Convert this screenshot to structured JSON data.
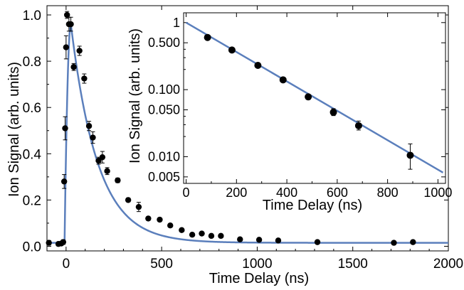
{
  "chart_data": [
    {
      "type": "scatter",
      "title": "",
      "xlabel": "Time Delay (ns)",
      "ylabel": "Ion Signal (arb. units)",
      "xlim": [
        -100,
        2000
      ],
      "ylim": [
        -0.02,
        1.04
      ],
      "xticks": [
        0,
        500,
        1000,
        1500,
        2000
      ],
      "yticks": [
        0.0,
        0.2,
        0.4,
        0.6,
        0.8,
        1.0
      ],
      "ytick_labels": [
        "0.0",
        "0.2",
        "0.4",
        "0.6",
        "0.8",
        "1.0"
      ],
      "grid": false,
      "legend": "none",
      "line_color": "#5b7fbc",
      "marker_color": "#000000",
      "series": [
        {
          "style": "markers-with-error-bars",
          "points": [
            {
              "x": -90,
              "y": 0.015,
              "err": 0.01
            },
            {
              "x": -40,
              "y": 0.01,
              "err": 0.008
            },
            {
              "x": -25,
              "y": 0.012,
              "err": 0.008
            },
            {
              "x": -15,
              "y": 0.018,
              "err": 0.01
            },
            {
              "x": -10,
              "y": 0.28,
              "err": 0.03
            },
            {
              "x": -5,
              "y": 0.51,
              "err": 0.05
            },
            {
              "x": 0,
              "y": 0.86,
              "err": 0.05
            },
            {
              "x": 5,
              "y": 1.0,
              "err": 0.015
            },
            {
              "x": 15,
              "y": 0.96,
              "err": 0.03
            },
            {
              "x": 25,
              "y": 0.96,
              "err": 0.03
            },
            {
              "x": 40,
              "y": 0.775,
              "err": 0.015
            },
            {
              "x": 70,
              "y": 0.845,
              "err": 0.02
            },
            {
              "x": 95,
              "y": 0.725,
              "err": 0.02
            },
            {
              "x": 120,
              "y": 0.52,
              "err": 0.02
            },
            {
              "x": 140,
              "y": 0.47,
              "err": 0.025
            },
            {
              "x": 170,
              "y": 0.37,
              "err": 0.015
            },
            {
              "x": 190,
              "y": 0.385,
              "err": 0.025
            },
            {
              "x": 215,
              "y": 0.325,
              "err": 0.015
            },
            {
              "x": 270,
              "y": 0.285,
              "err": 0.01
            },
            {
              "x": 325,
              "y": 0.2,
              "err": 0.008
            },
            {
              "x": 380,
              "y": 0.17,
              "err": 0.02
            },
            {
              "x": 430,
              "y": 0.12,
              "err": 0.008
            },
            {
              "x": 490,
              "y": 0.115,
              "err": 0.008
            },
            {
              "x": 545,
              "y": 0.09,
              "err": 0.006
            },
            {
              "x": 605,
              "y": 0.07,
              "err": 0.006
            },
            {
              "x": 660,
              "y": 0.05,
              "err": 0.005
            },
            {
              "x": 710,
              "y": 0.055,
              "err": 0.005
            },
            {
              "x": 760,
              "y": 0.045,
              "err": 0.005
            },
            {
              "x": 810,
              "y": 0.045,
              "err": 0.005
            },
            {
              "x": 910,
              "y": 0.03,
              "err": 0.004
            },
            {
              "x": 1010,
              "y": 0.028,
              "err": 0.004
            },
            {
              "x": 1110,
              "y": 0.025,
              "err": 0.004
            },
            {
              "x": 1315,
              "y": 0.018,
              "err": 0.004
            },
            {
              "x": 1715,
              "y": 0.015,
              "err": 0.004
            },
            {
              "x": 1815,
              "y": 0.018,
              "err": 0.004
            }
          ]
        },
        {
          "style": "fit-line",
          "model": "exponential rise and decay",
          "rise_start_x": -8,
          "peak_x": 25,
          "peak_y": 0.96,
          "baseline_y": 0.015,
          "decay_time_ns": 140
        }
      ]
    },
    {
      "type": "scatter",
      "title": "",
      "xlabel": "Time Delay (ns)",
      "ylabel": "Ion Signal (arb. units)",
      "xlim": [
        -10,
        1030
      ],
      "ylim": [
        0.004,
        1.4
      ],
      "yscale": "log",
      "xticks": [
        0,
        200,
        400,
        600,
        800,
        1000
      ],
      "yticks": [
        1,
        0.5,
        0.1,
        0.05,
        0.01,
        0.005
      ],
      "ytick_labels": [
        "1",
        "0.500",
        "0.100",
        "0.050",
        "0.010",
        "0.005"
      ],
      "grid": false,
      "legend": "none",
      "placement": "inset top-right",
      "line_color": "#5b7fbc",
      "marker_color": "#000000",
      "series": [
        {
          "style": "markers-with-error-bars",
          "points": [
            {
              "x": 85,
              "y": 0.6,
              "err_low": 0.04,
              "err_high": 0.04
            },
            {
              "x": 182,
              "y": 0.39,
              "err_low": 0.025,
              "err_high": 0.025
            },
            {
              "x": 285,
              "y": 0.23,
              "err_low": 0.015,
              "err_high": 0.015
            },
            {
              "x": 385,
              "y": 0.14,
              "err_low": 0.01,
              "err_high": 0.01
            },
            {
              "x": 485,
              "y": 0.078,
              "err_low": 0.006,
              "err_high": 0.006
            },
            {
              "x": 585,
              "y": 0.046,
              "err_low": 0.005,
              "err_high": 0.006
            },
            {
              "x": 685,
              "y": 0.029,
              "err_low": 0.004,
              "err_high": 0.005
            },
            {
              "x": 890,
              "y": 0.0105,
              "err_low": 0.004,
              "err_high": 0.005
            }
          ]
        },
        {
          "style": "fit-line",
          "x": [
            0,
            1020
          ],
          "y": [
            1.0,
            0.0058
          ]
        }
      ]
    }
  ]
}
